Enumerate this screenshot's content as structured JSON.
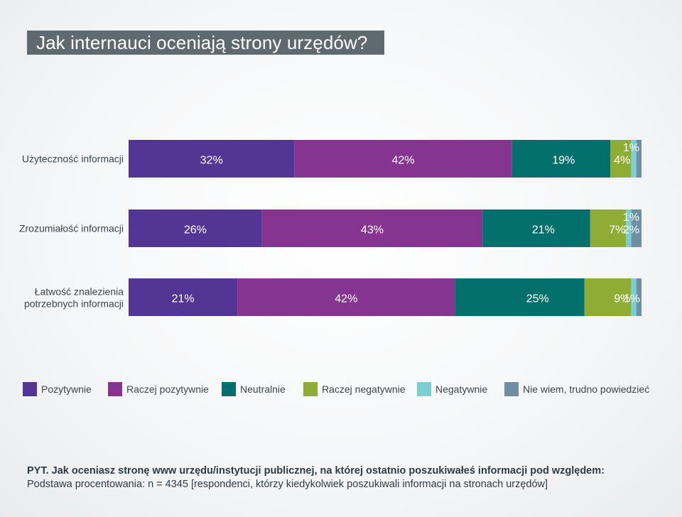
{
  "title": "Jak internauci oceniają strony urzędów?",
  "chart_data": {
    "type": "bar",
    "orientation": "horizontal-stacked",
    "categories": [
      [
        "Użyteczność informacji"
      ],
      [
        "Zrozumiałość informacji"
      ],
      [
        "Łatwość znalezienia",
        "potrzebnych informacji"
      ]
    ],
    "series": [
      {
        "name": "Pozytywnie",
        "color": "#533593",
        "values": [
          32,
          26,
          21
        ]
      },
      {
        "name": "Raczej pozytywnie",
        "color": "#853590",
        "values": [
          42,
          43,
          42
        ]
      },
      {
        "name": "Neutralnie",
        "color": "#04706d",
        "values": [
          19,
          21,
          25
        ]
      },
      {
        "name": "Raczej negatywnie",
        "color": "#8fad35",
        "values": [
          4,
          7,
          9
        ]
      },
      {
        "name": "Negatywnie",
        "color": "#7ccfd0",
        "values": [
          1,
          1,
          1
        ]
      },
      {
        "name": "Nie wiem, trudno powiedzieć",
        "color": "#6e8ea3",
        "values": [
          1,
          2,
          1
        ]
      }
    ],
    "data_labels": [
      [
        "32%",
        "42%",
        "19%",
        "4%",
        "1%",
        ""
      ],
      [
        "26%",
        "43%",
        "21%",
        "7%",
        "1%",
        "2%"
      ],
      [
        "21%",
        "42%",
        "25%",
        "9%",
        "",
        "1%"
      ]
    ],
    "xlim": [
      0,
      100
    ],
    "legend_position": "bottom",
    "grid": false
  },
  "footnote": {
    "question": "PYT. Jak oceniasz stronę www urzędu/instytucji publicznej, na której ostatnio poszukiwałeś informacji pod względem:",
    "base": "Podstawa procentowania: n = 4345 [respondenci, którzy kiedykolwiek poszukiwali informacji na stronach urzędów]"
  }
}
